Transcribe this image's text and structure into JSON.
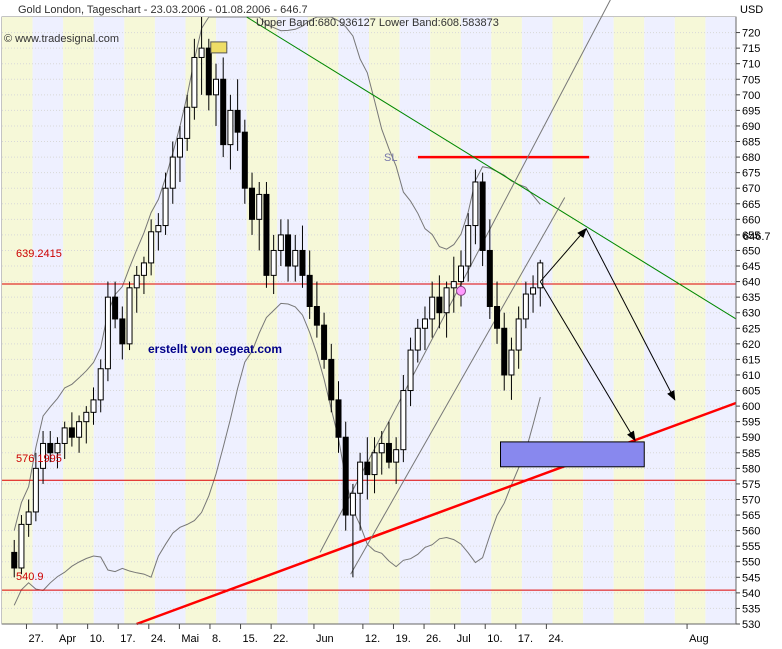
{
  "chart_data": {
    "type": "candlestick",
    "title": "Gold London, Tageschart - 23.03.2006 - 01.08.2006 - 646.7",
    "subtitle": "Upper Band:680.936127 Lower Band:608.583873",
    "watermark": "© www.tradesignal.com",
    "currency_label": "USD",
    "ylim": [
      530,
      725
    ],
    "y_ticks": [
      530,
      535,
      540,
      545,
      550,
      555,
      560,
      565,
      570,
      575,
      580,
      585,
      590,
      595,
      600,
      605,
      610,
      615,
      620,
      625,
      630,
      635,
      640,
      645,
      650,
      655,
      660,
      665,
      670,
      675,
      680,
      685,
      690,
      695,
      700,
      705,
      710,
      715,
      720
    ],
    "x_ticks": [
      {
        "label": "27.",
        "day": 4
      },
      {
        "label": "Apr",
        "day": 9
      },
      {
        "label": "10.",
        "day": 14
      },
      {
        "label": "17.",
        "day": 19
      },
      {
        "label": "24.",
        "day": 24
      },
      {
        "label": "Mai",
        "day": 29
      },
      {
        "label": "8.",
        "day": 34
      },
      {
        "label": "15.",
        "day": 39
      },
      {
        "label": "22.",
        "day": 44
      },
      {
        "label": "Jun",
        "day": 51
      },
      {
        "label": "12.",
        "day": 59
      },
      {
        "label": "19.",
        "day": 64
      },
      {
        "label": "26.",
        "day": 69
      },
      {
        "label": "Jul",
        "day": 74
      },
      {
        "label": "10.",
        "day": 79
      },
      {
        "label": "17.",
        "day": 84
      },
      {
        "label": "24.",
        "day": 89
      },
      {
        "label": "Aug",
        "day": 112
      }
    ],
    "candles": [
      [
        553,
        557,
        545,
        548
      ],
      [
        548,
        565,
        546,
        562
      ],
      [
        562,
        570,
        558,
        566
      ],
      [
        566,
        585,
        563,
        580
      ],
      [
        580,
        592,
        575,
        588
      ],
      [
        588,
        592,
        582,
        585
      ],
      [
        585,
        590,
        580,
        588
      ],
      [
        588,
        595,
        583,
        593
      ],
      [
        593,
        598,
        587,
        590
      ],
      [
        590,
        597,
        585,
        595
      ],
      [
        595,
        600,
        588,
        598
      ],
      [
        598,
        606,
        594,
        602
      ],
      [
        602,
        615,
        598,
        612
      ],
      [
        612,
        640,
        608,
        635
      ],
      [
        635,
        640,
        625,
        628
      ],
      [
        628,
        632,
        615,
        620
      ],
      [
        620,
        640,
        618,
        638
      ],
      [
        638,
        645,
        630,
        642
      ],
      [
        642,
        648,
        636,
        646
      ],
      [
        646,
        660,
        642,
        656
      ],
      [
        656,
        662,
        650,
        658
      ],
      [
        658,
        675,
        655,
        670
      ],
      [
        670,
        685,
        665,
        680
      ],
      [
        680,
        690,
        672,
        686
      ],
      [
        686,
        700,
        682,
        696
      ],
      [
        696,
        718,
        692,
        712
      ],
      [
        712,
        725,
        700,
        715
      ],
      [
        715,
        718,
        695,
        700
      ],
      [
        700,
        710,
        690,
        705
      ],
      [
        705,
        712,
        680,
        684
      ],
      [
        684,
        700,
        676,
        695
      ],
      [
        695,
        705,
        682,
        688
      ],
      [
        688,
        692,
        665,
        670
      ],
      [
        670,
        675,
        655,
        660
      ],
      [
        660,
        672,
        650,
        668
      ],
      [
        668,
        672,
        638,
        642
      ],
      [
        642,
        655,
        636,
        650
      ],
      [
        650,
        660,
        645,
        655
      ],
      [
        655,
        660,
        640,
        645
      ],
      [
        645,
        655,
        640,
        650
      ],
      [
        650,
        658,
        638,
        642
      ],
      [
        642,
        650,
        628,
        632
      ],
      [
        632,
        640,
        622,
        626
      ],
      [
        626,
        630,
        612,
        615
      ],
      [
        615,
        620,
        598,
        602
      ],
      [
        602,
        608,
        585,
        590
      ],
      [
        590,
        595,
        560,
        565
      ],
      [
        565,
        575,
        545,
        572
      ],
      [
        572,
        585,
        560,
        582
      ],
      [
        582,
        590,
        570,
        578
      ],
      [
        578,
        590,
        572,
        585
      ],
      [
        585,
        592,
        578,
        588
      ],
      [
        588,
        595,
        580,
        582
      ],
      [
        582,
        590,
        575,
        586
      ],
      [
        586,
        610,
        582,
        605
      ],
      [
        605,
        622,
        600,
        618
      ],
      [
        618,
        628,
        614,
        625
      ],
      [
        625,
        632,
        618,
        628
      ],
      [
        628,
        640,
        622,
        635
      ],
      [
        635,
        642,
        625,
        630
      ],
      [
        630,
        640,
        622,
        638
      ],
      [
        638,
        648,
        630,
        640
      ],
      [
        640,
        650,
        632,
        645
      ],
      [
        645,
        662,
        640,
        658
      ],
      [
        658,
        676,
        652,
        672
      ],
      [
        672,
        675,
        645,
        650
      ],
      [
        650,
        660,
        628,
        632
      ],
      [
        632,
        640,
        620,
        625
      ],
      [
        625,
        630,
        605,
        610
      ],
      [
        610,
        622,
        602,
        618
      ],
      [
        618,
        632,
        612,
        628
      ],
      [
        628,
        640,
        625,
        636
      ],
      [
        636,
        642,
        630,
        638
      ],
      [
        638,
        647,
        632,
        646
      ]
    ],
    "overlays": {
      "upper_band": {
        "name": "Upper Band",
        "value": 680.936127
      },
      "lower_band": {
        "name": "Lower Band",
        "value": 608.583873
      },
      "horizontal_levels": [
        {
          "label": "639.2415",
          "value": 639.2415
        },
        {
          "label": "576.1995",
          "value": 576.1995
        },
        {
          "label": "540.9",
          "value": 540.9
        }
      ],
      "stop_loss": {
        "label": "SL",
        "value": 680
      },
      "current_price": {
        "label": "646.7",
        "value": 646.7
      },
      "annotation": "erstellt von oegeat.com"
    }
  },
  "colors": {
    "band_fill": "#eef0ff",
    "band_fill_alt": "#f6f8d8",
    "candle_fill": "#ffffff",
    "candle_stroke": "#000000",
    "resistance": "#008800",
    "support": "#ff0000",
    "level_line": "#dd0000",
    "target_box": "#8888ee",
    "circle": "#ff99ff",
    "marker": "#eedd66"
  }
}
